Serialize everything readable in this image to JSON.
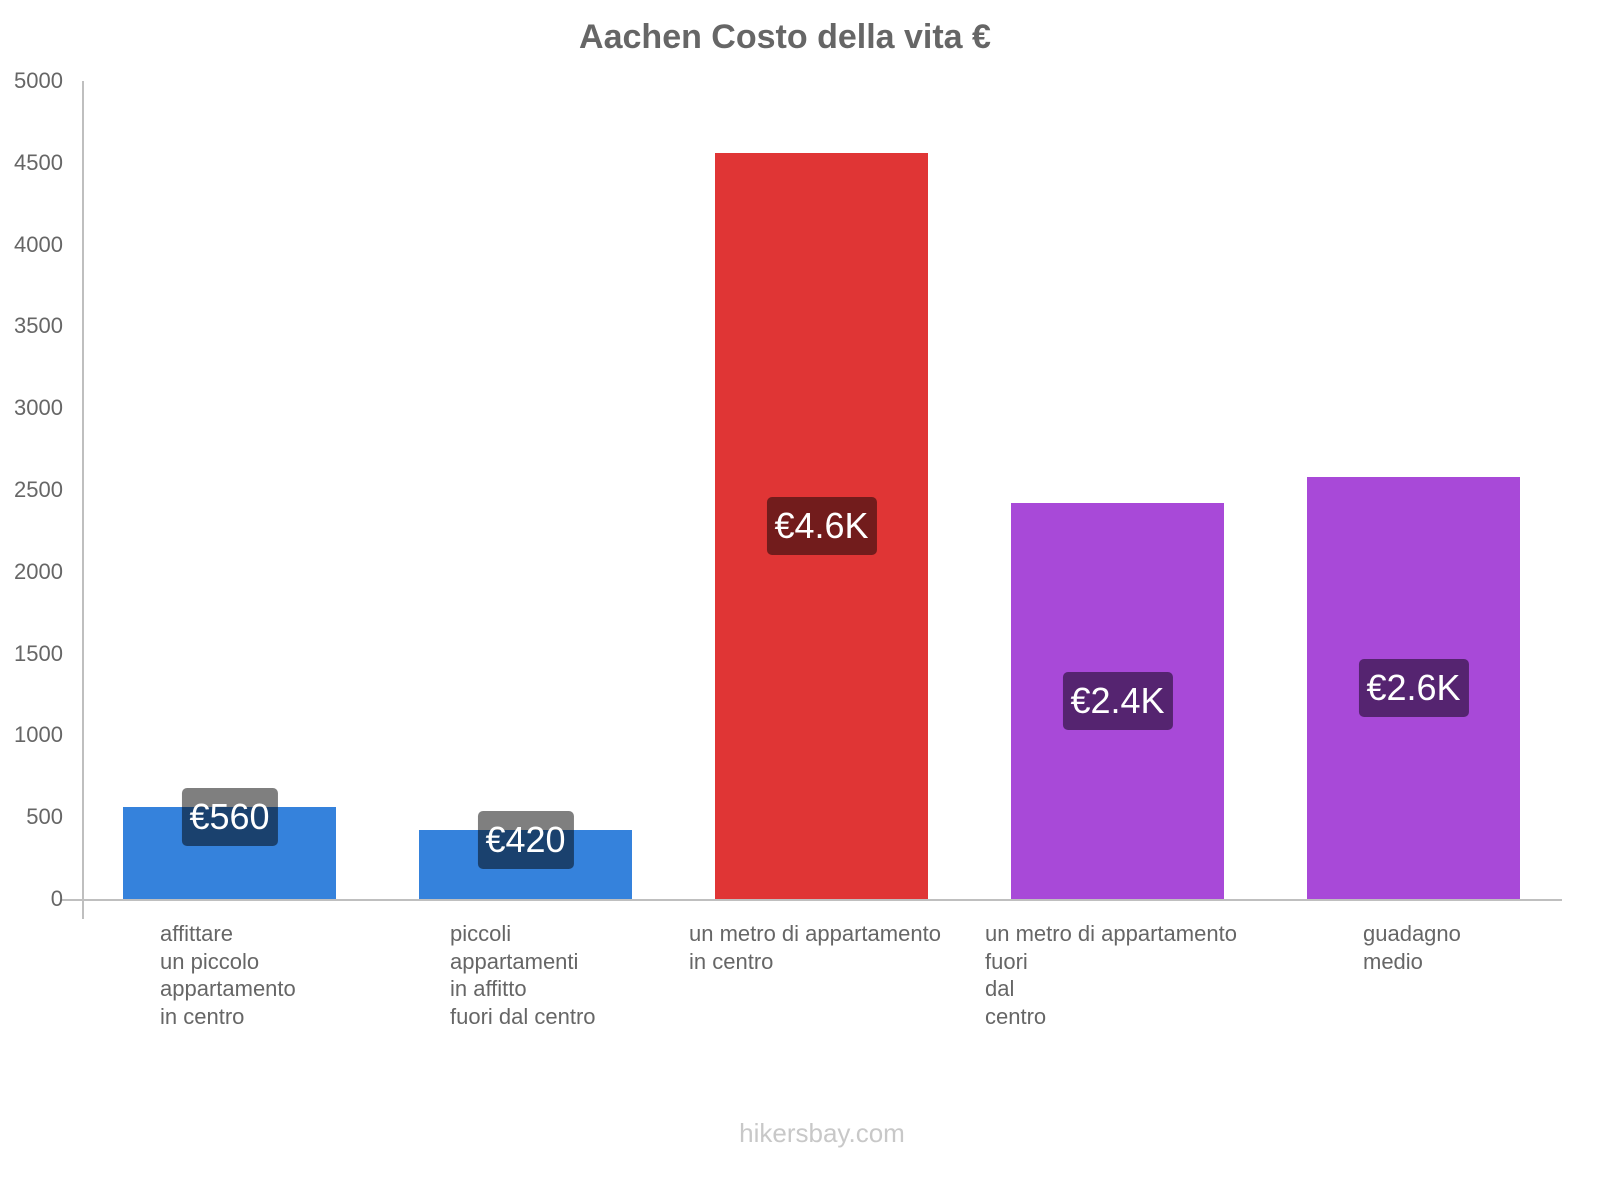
{
  "title": "Aachen Costo della vita €",
  "footer": "hikersbay.com",
  "y_axis": {
    "ticks": [
      "0",
      "500",
      "1000",
      "1500",
      "2000",
      "2500",
      "3000",
      "3500",
      "4000",
      "4500",
      "5000"
    ]
  },
  "bars": [
    {
      "label": "affittare\nun piccolo\nappartamento\nin centro",
      "value": 560,
      "display": "€560",
      "color": "#3582dc",
      "label_bg": "rgba(0,0,0,0.5)"
    },
    {
      "label": "piccoli\nappartamenti\nin affitto\nfuori dal centro",
      "value": 420,
      "display": "€420",
      "color": "#3582dc",
      "label_bg": "rgba(0,0,0,0.5)"
    },
    {
      "label": "un metro di appartamento\nin centro",
      "value": 4560,
      "display": "€4.6K",
      "color": "#e03535",
      "label_bg": "#721c1c"
    },
    {
      "label": "un metro di appartamento\nfuori\ndal\ncentro",
      "value": 2420,
      "display": "€2.4K",
      "color": "#a849d8",
      "label_bg": "#552470"
    },
    {
      "label": "guadagno\nmedio",
      "value": 2580,
      "display": "€2.6K",
      "color": "#a849d8",
      "label_bg": "#552470"
    }
  ],
  "chart_data": {
    "type": "bar",
    "title": "Aachen Costo della vita €",
    "categories": [
      "affittare un piccolo appartamento in centro",
      "piccoli appartamenti in affitto fuori dal centro",
      "un metro di appartamento in centro",
      "un metro di appartamento fuori dal centro",
      "guadagno medio"
    ],
    "values": [
      560,
      420,
      4560,
      2420,
      2580
    ],
    "data_labels": [
      "€560",
      "€420",
      "€4.6K",
      "€2.4K",
      "€2.6K"
    ],
    "colors": [
      "#3582dc",
      "#3582dc",
      "#e03535",
      "#a849d8",
      "#a849d8"
    ],
    "xlabel": "",
    "ylabel": "",
    "ylim": [
      0,
      5000
    ],
    "yticks": [
      0,
      500,
      1000,
      1500,
      2000,
      2500,
      3000,
      3500,
      4000,
      4500,
      5000
    ],
    "grid": false,
    "legend": null,
    "source": "hikersbay.com"
  }
}
